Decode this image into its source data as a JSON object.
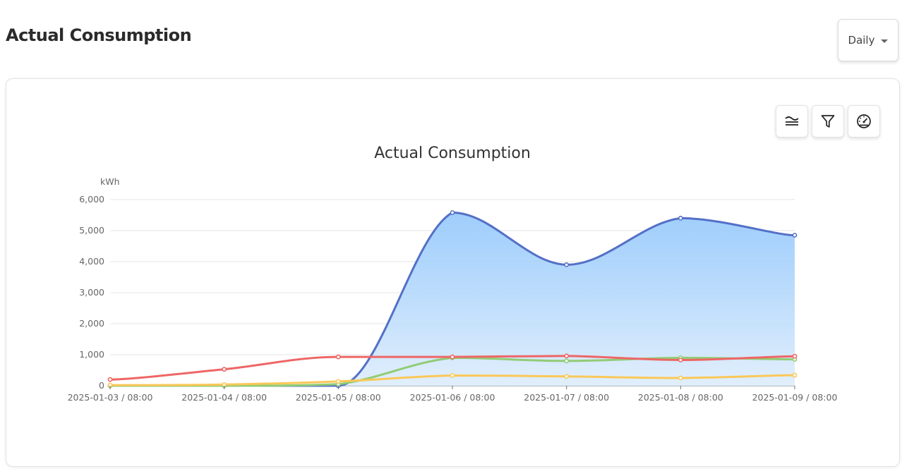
{
  "header": {
    "title": "Actual Consumption",
    "period_select": {
      "selected": "Daily"
    }
  },
  "toolbar": {
    "icons": [
      "stack-lines-icon",
      "filter-icon",
      "gauge-icon"
    ]
  },
  "chart_data": {
    "type": "area",
    "title": "Actual Consumption",
    "ylabel": "kWh",
    "xlabel": "",
    "ylim": [
      0,
      6000
    ],
    "yticks": [
      "0",
      "1,000",
      "2,000",
      "3,000",
      "4,000",
      "5,000",
      "6,000"
    ],
    "categories": [
      "2025-01-03 / 08:00",
      "2025-01-04 / 08:00",
      "2025-01-05 / 08:00",
      "2025-01-06 / 08:00",
      "2025-01-07 / 08:00",
      "2025-01-08 / 08:00",
      "2025-01-09 / 08:00"
    ],
    "grid": true,
    "series": [
      {
        "values": [
          0,
          0,
          0,
          5580,
          3900,
          5400,
          4850
        ],
        "color": "#5470c6",
        "area": true
      },
      {
        "values": [
          0,
          0,
          50,
          900,
          800,
          900,
          850
        ],
        "color": "#91cc75",
        "area": false
      },
      {
        "values": [
          20,
          40,
          140,
          330,
          300,
          250,
          340
        ],
        "color": "#fac858",
        "area": false
      },
      {
        "values": [
          200,
          530,
          930,
          930,
          960,
          830,
          950
        ],
        "color": "#ee6666",
        "area": false
      }
    ]
  }
}
